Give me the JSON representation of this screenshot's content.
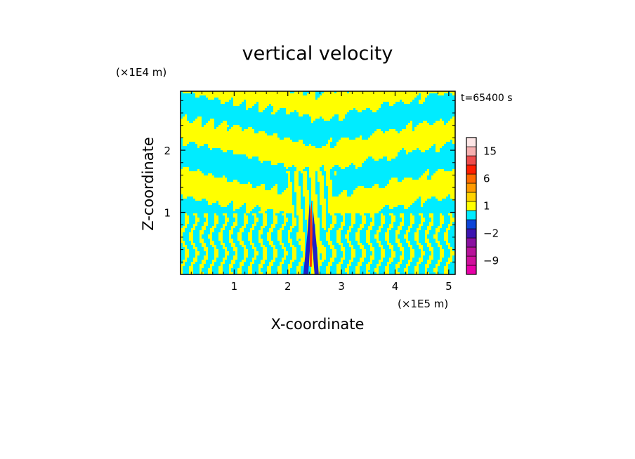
{
  "chart_data": {
    "type": "heatmap",
    "title": "vertical velocity",
    "xlabel": "X-coordinate",
    "ylabel": "Z-coordinate",
    "x_unit": "(×1E5 m)",
    "y_unit": "(×1E4 m)",
    "time_label": "t=65400 s",
    "xlim": [
      0,
      5.12
    ],
    "ylim": [
      0,
      2.95
    ],
    "x_ticks": [
      1,
      2,
      3,
      4,
      5
    ],
    "y_ticks": [
      1,
      2
    ],
    "colorbar": {
      "levels": [
        {
          "label": "",
          "color": "#e800a8"
        },
        {
          "label": "-9",
          "color": "#d0109c"
        },
        {
          "label": "",
          "color": "#b8129a"
        },
        {
          "label": "",
          "color": "#8a10a0"
        },
        {
          "label": "-2",
          "color": "#3c14b0"
        },
        {
          "label": "",
          "color": "#0c44d8"
        },
        {
          "label": "",
          "color": "#00ecff"
        },
        {
          "label": "1",
          "color": "#ffff00"
        },
        {
          "label": "",
          "color": "#ffd200"
        },
        {
          "label": "",
          "color": "#ff9a00"
        },
        {
          "label": "6",
          "color": "#ff6a00"
        },
        {
          "label": "",
          "color": "#ff1e00"
        },
        {
          "label": "",
          "color": "#ee4c4c"
        },
        {
          "label": "15",
          "color": "#f6b0b0"
        },
        {
          "label": "",
          "color": "#fde6e6"
        }
      ]
    },
    "field_colors": {
      "negative": "#00ecff",
      "positive": "#ffff00",
      "strong_negative": "#2020c8",
      "strong_positive": "#ff4000"
    }
  }
}
